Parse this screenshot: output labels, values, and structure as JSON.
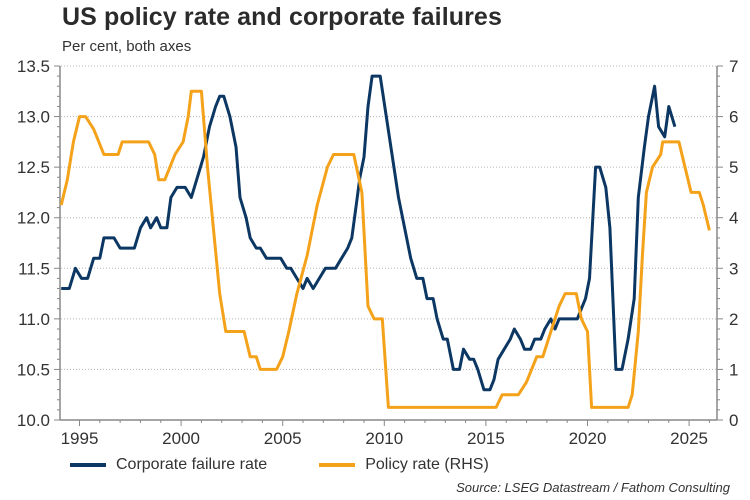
{
  "chart_data": {
    "type": "line",
    "title": "US policy rate and corporate failures",
    "subtitle": "Per cent, both axes",
    "xlabel": "",
    "ylabel_left": "",
    "ylabel_right": "",
    "xlim": [
      1994.0,
      2026.9
    ],
    "ylim_left": [
      10.0,
      13.5
    ],
    "ylim_right": [
      0,
      7
    ],
    "x_ticks": [
      "1995",
      "2000",
      "2005",
      "2010",
      "2015",
      "2020",
      "2025"
    ],
    "y_ticks_left": [
      "10.0",
      "10.5",
      "11.0",
      "11.5",
      "12.0",
      "12.5",
      "13.0",
      "13.5"
    ],
    "y_ticks_right": [
      "0",
      "1",
      "2",
      "3",
      "4",
      "5",
      "6",
      "7"
    ],
    "grid": "horizontal dotted",
    "legend_position": "bottom",
    "source": "Source: LSEG Datastream / Fathom Consulting",
    "series": [
      {
        "name": "Corporate failure rate",
        "axis": "left",
        "color": "#0c3763",
        "points": [
          [
            1994.1,
            11.3
          ],
          [
            1994.5,
            11.3
          ],
          [
            1994.8,
            11.5
          ],
          [
            1995.1,
            11.4
          ],
          [
            1995.4,
            11.4
          ],
          [
            1995.7,
            11.6
          ],
          [
            1996.0,
            11.6
          ],
          [
            1996.2,
            11.8
          ],
          [
            1996.7,
            11.8
          ],
          [
            1997.0,
            11.7
          ],
          [
            1997.7,
            11.7
          ],
          [
            1998.0,
            11.9
          ],
          [
            1998.3,
            12.0
          ],
          [
            1998.5,
            11.9
          ],
          [
            1998.8,
            12.0
          ],
          [
            1999.0,
            11.9
          ],
          [
            1999.3,
            11.9
          ],
          [
            1999.5,
            12.2
          ],
          [
            1999.8,
            12.3
          ],
          [
            2000.2,
            12.3
          ],
          [
            2000.5,
            12.2
          ],
          [
            2000.8,
            12.4
          ],
          [
            2001.1,
            12.6
          ],
          [
            2001.4,
            12.9
          ],
          [
            2001.7,
            13.1
          ],
          [
            2001.9,
            13.2
          ],
          [
            2002.1,
            13.2
          ],
          [
            2002.4,
            13.0
          ],
          [
            2002.7,
            12.7
          ],
          [
            2002.9,
            12.2
          ],
          [
            2003.2,
            12.0
          ],
          [
            2003.4,
            11.8
          ],
          [
            2003.7,
            11.7
          ],
          [
            2003.9,
            11.7
          ],
          [
            2004.2,
            11.6
          ],
          [
            2004.9,
            11.6
          ],
          [
            2005.2,
            11.5
          ],
          [
            2005.4,
            11.5
          ],
          [
            2005.7,
            11.4
          ],
          [
            2006.0,
            11.3
          ],
          [
            2006.2,
            11.4
          ],
          [
            2006.5,
            11.3
          ],
          [
            2006.8,
            11.4
          ],
          [
            2007.1,
            11.5
          ],
          [
            2007.6,
            11.5
          ],
          [
            2007.9,
            11.6
          ],
          [
            2008.2,
            11.7
          ],
          [
            2008.4,
            11.8
          ],
          [
            2008.6,
            12.1
          ],
          [
            2008.8,
            12.4
          ],
          [
            2009.0,
            12.6
          ],
          [
            2009.2,
            13.1
          ],
          [
            2009.4,
            13.4
          ],
          [
            2009.8,
            13.4
          ],
          [
            2010.1,
            13.0
          ],
          [
            2010.4,
            12.6
          ],
          [
            2010.7,
            12.2
          ],
          [
            2011.0,
            11.9
          ],
          [
            2011.3,
            11.6
          ],
          [
            2011.6,
            11.4
          ],
          [
            2011.9,
            11.4
          ],
          [
            2012.1,
            11.2
          ],
          [
            2012.4,
            11.2
          ],
          [
            2012.6,
            11.0
          ],
          [
            2012.9,
            10.8
          ],
          [
            2013.1,
            10.8
          ],
          [
            2013.4,
            10.5
          ],
          [
            2013.7,
            10.5
          ],
          [
            2013.9,
            10.7
          ],
          [
            2014.2,
            10.6
          ],
          [
            2014.4,
            10.6
          ],
          [
            2014.6,
            10.5
          ],
          [
            2014.9,
            10.3
          ],
          [
            2015.2,
            10.3
          ],
          [
            2015.4,
            10.4
          ],
          [
            2015.6,
            10.6
          ],
          [
            2015.9,
            10.7
          ],
          [
            2016.2,
            10.8
          ],
          [
            2016.4,
            10.9
          ],
          [
            2016.7,
            10.8
          ],
          [
            2016.9,
            10.7
          ],
          [
            2017.2,
            10.7
          ],
          [
            2017.4,
            10.8
          ],
          [
            2017.7,
            10.8
          ],
          [
            2017.9,
            10.9
          ],
          [
            2018.2,
            11.0
          ],
          [
            2018.4,
            10.9
          ],
          [
            2018.6,
            11.0
          ],
          [
            2019.2,
            11.0
          ],
          [
            2019.5,
            11.0
          ],
          [
            2019.7,
            11.1
          ],
          [
            2019.9,
            11.2
          ],
          [
            2020.1,
            11.4
          ],
          [
            2020.4,
            12.5
          ],
          [
            2020.6,
            12.5
          ],
          [
            2020.9,
            12.3
          ],
          [
            2021.1,
            11.9
          ],
          [
            2021.4,
            10.5
          ],
          [
            2021.7,
            10.5
          ],
          [
            2022.0,
            10.8
          ],
          [
            2022.3,
            11.2
          ],
          [
            2022.5,
            12.2
          ],
          [
            2022.8,
            12.7
          ],
          [
            2023.0,
            13.0
          ],
          [
            2023.3,
            13.3
          ],
          [
            2023.5,
            12.9
          ],
          [
            2023.8,
            12.8
          ],
          [
            2024.0,
            13.1
          ],
          [
            2024.3,
            12.9
          ]
        ]
      },
      {
        "name": "Policy rate (RHS)",
        "axis": "right",
        "color": "#f5a21b",
        "points": [
          [
            1994.1,
            4.25
          ],
          [
            1994.4,
            4.75
          ],
          [
            1994.7,
            5.5
          ],
          [
            1995.0,
            6.0
          ],
          [
            1995.3,
            6.0
          ],
          [
            1995.7,
            5.75
          ],
          [
            1996.2,
            5.25
          ],
          [
            1996.9,
            5.25
          ],
          [
            1997.1,
            5.5
          ],
          [
            1998.4,
            5.5
          ],
          [
            1998.7,
            5.25
          ],
          [
            1998.9,
            4.75
          ],
          [
            1999.2,
            4.75
          ],
          [
            1999.7,
            5.25
          ],
          [
            2000.1,
            5.5
          ],
          [
            2000.35,
            6.0
          ],
          [
            2000.5,
            6.5
          ],
          [
            2001.0,
            6.5
          ],
          [
            2001.3,
            5.0
          ],
          [
            2001.6,
            3.75
          ],
          [
            2001.9,
            2.5
          ],
          [
            2002.2,
            1.75
          ],
          [
            2003.1,
            1.75
          ],
          [
            2003.4,
            1.25
          ],
          [
            2003.7,
            1.25
          ],
          [
            2003.9,
            1.0
          ],
          [
            2004.7,
            1.0
          ],
          [
            2005.0,
            1.25
          ],
          [
            2005.3,
            1.75
          ],
          [
            2005.7,
            2.5
          ],
          [
            2006.2,
            3.25
          ],
          [
            2006.7,
            4.25
          ],
          [
            2007.2,
            5.0
          ],
          [
            2007.5,
            5.25
          ],
          [
            2008.5,
            5.25
          ],
          [
            2008.9,
            4.5
          ],
          [
            2009.2,
            2.25
          ],
          [
            2009.5,
            2.0
          ],
          [
            2009.9,
            2.0
          ],
          [
            2010.2,
            0.25
          ],
          [
            2015.5,
            0.25
          ],
          [
            2015.8,
            0.5
          ],
          [
            2016.6,
            0.5
          ],
          [
            2017.0,
            0.75
          ],
          [
            2017.5,
            1.25
          ],
          [
            2017.8,
            1.25
          ],
          [
            2018.2,
            1.75
          ],
          [
            2018.6,
            2.25
          ],
          [
            2018.9,
            2.5
          ],
          [
            2019.45,
            2.5
          ],
          [
            2019.7,
            2.0
          ],
          [
            2020.0,
            1.75
          ],
          [
            2020.2,
            0.25
          ],
          [
            2022.0,
            0.25
          ],
          [
            2022.2,
            0.5
          ],
          [
            2022.5,
            1.75
          ],
          [
            2022.7,
            3.25
          ],
          [
            2022.9,
            4.5
          ],
          [
            2023.2,
            5.0
          ],
          [
            2023.6,
            5.25
          ],
          [
            2023.7,
            5.5
          ],
          [
            2024.5,
            5.5
          ],
          [
            2024.8,
            5.0
          ],
          [
            2025.1,
            4.5
          ],
          [
            2025.5,
            4.5
          ],
          [
            2025.7,
            4.25
          ],
          [
            2026.0,
            3.75
          ]
        ]
      }
    ]
  },
  "legend": {
    "items": [
      {
        "label": "Corporate failure rate",
        "color": "#0c3763"
      },
      {
        "label": "Policy rate (RHS)",
        "color": "#f5a21b"
      }
    ]
  }
}
